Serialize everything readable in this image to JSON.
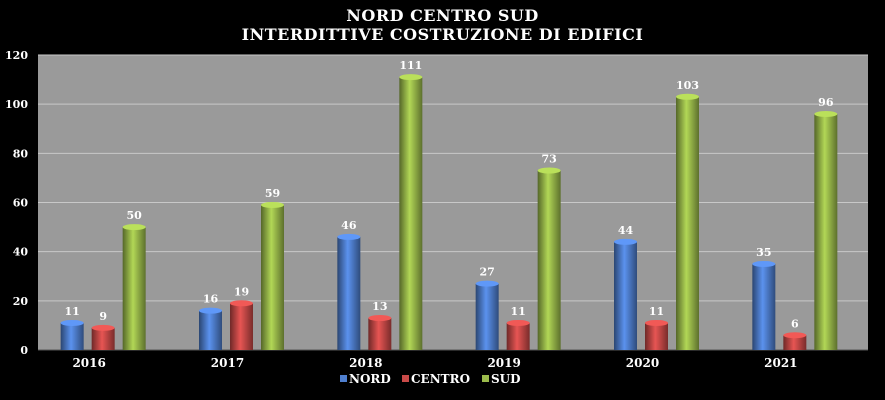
{
  "chart_data": {
    "type": "bar",
    "title": "NORD CENTRO SUD",
    "subtitle": "INTERDITTIVE COSTRUZIONE DI EDIFICI",
    "categories": [
      "2016",
      "2017",
      "2018",
      "2019",
      "2020",
      "2021"
    ],
    "series": [
      {
        "name": "NORD",
        "color": "#4f7fcf",
        "values": [
          11,
          16,
          46,
          27,
          44,
          35
        ]
      },
      {
        "name": "CENTRO",
        "color": "#c94a48",
        "values": [
          9,
          19,
          13,
          11,
          11,
          6
        ]
      },
      {
        "name": "SUD",
        "color": "#9bbb4b",
        "values": [
          50,
          59,
          111,
          73,
          103,
          96
        ]
      }
    ],
    "yticks": [
      "0",
      "20",
      "40",
      "60",
      "80",
      "100",
      "120"
    ],
    "ylim": [
      0,
      120
    ],
    "grid": true,
    "legend_position": "bottom",
    "plot_background": "#9a9a9a",
    "page_background": "#000000"
  }
}
